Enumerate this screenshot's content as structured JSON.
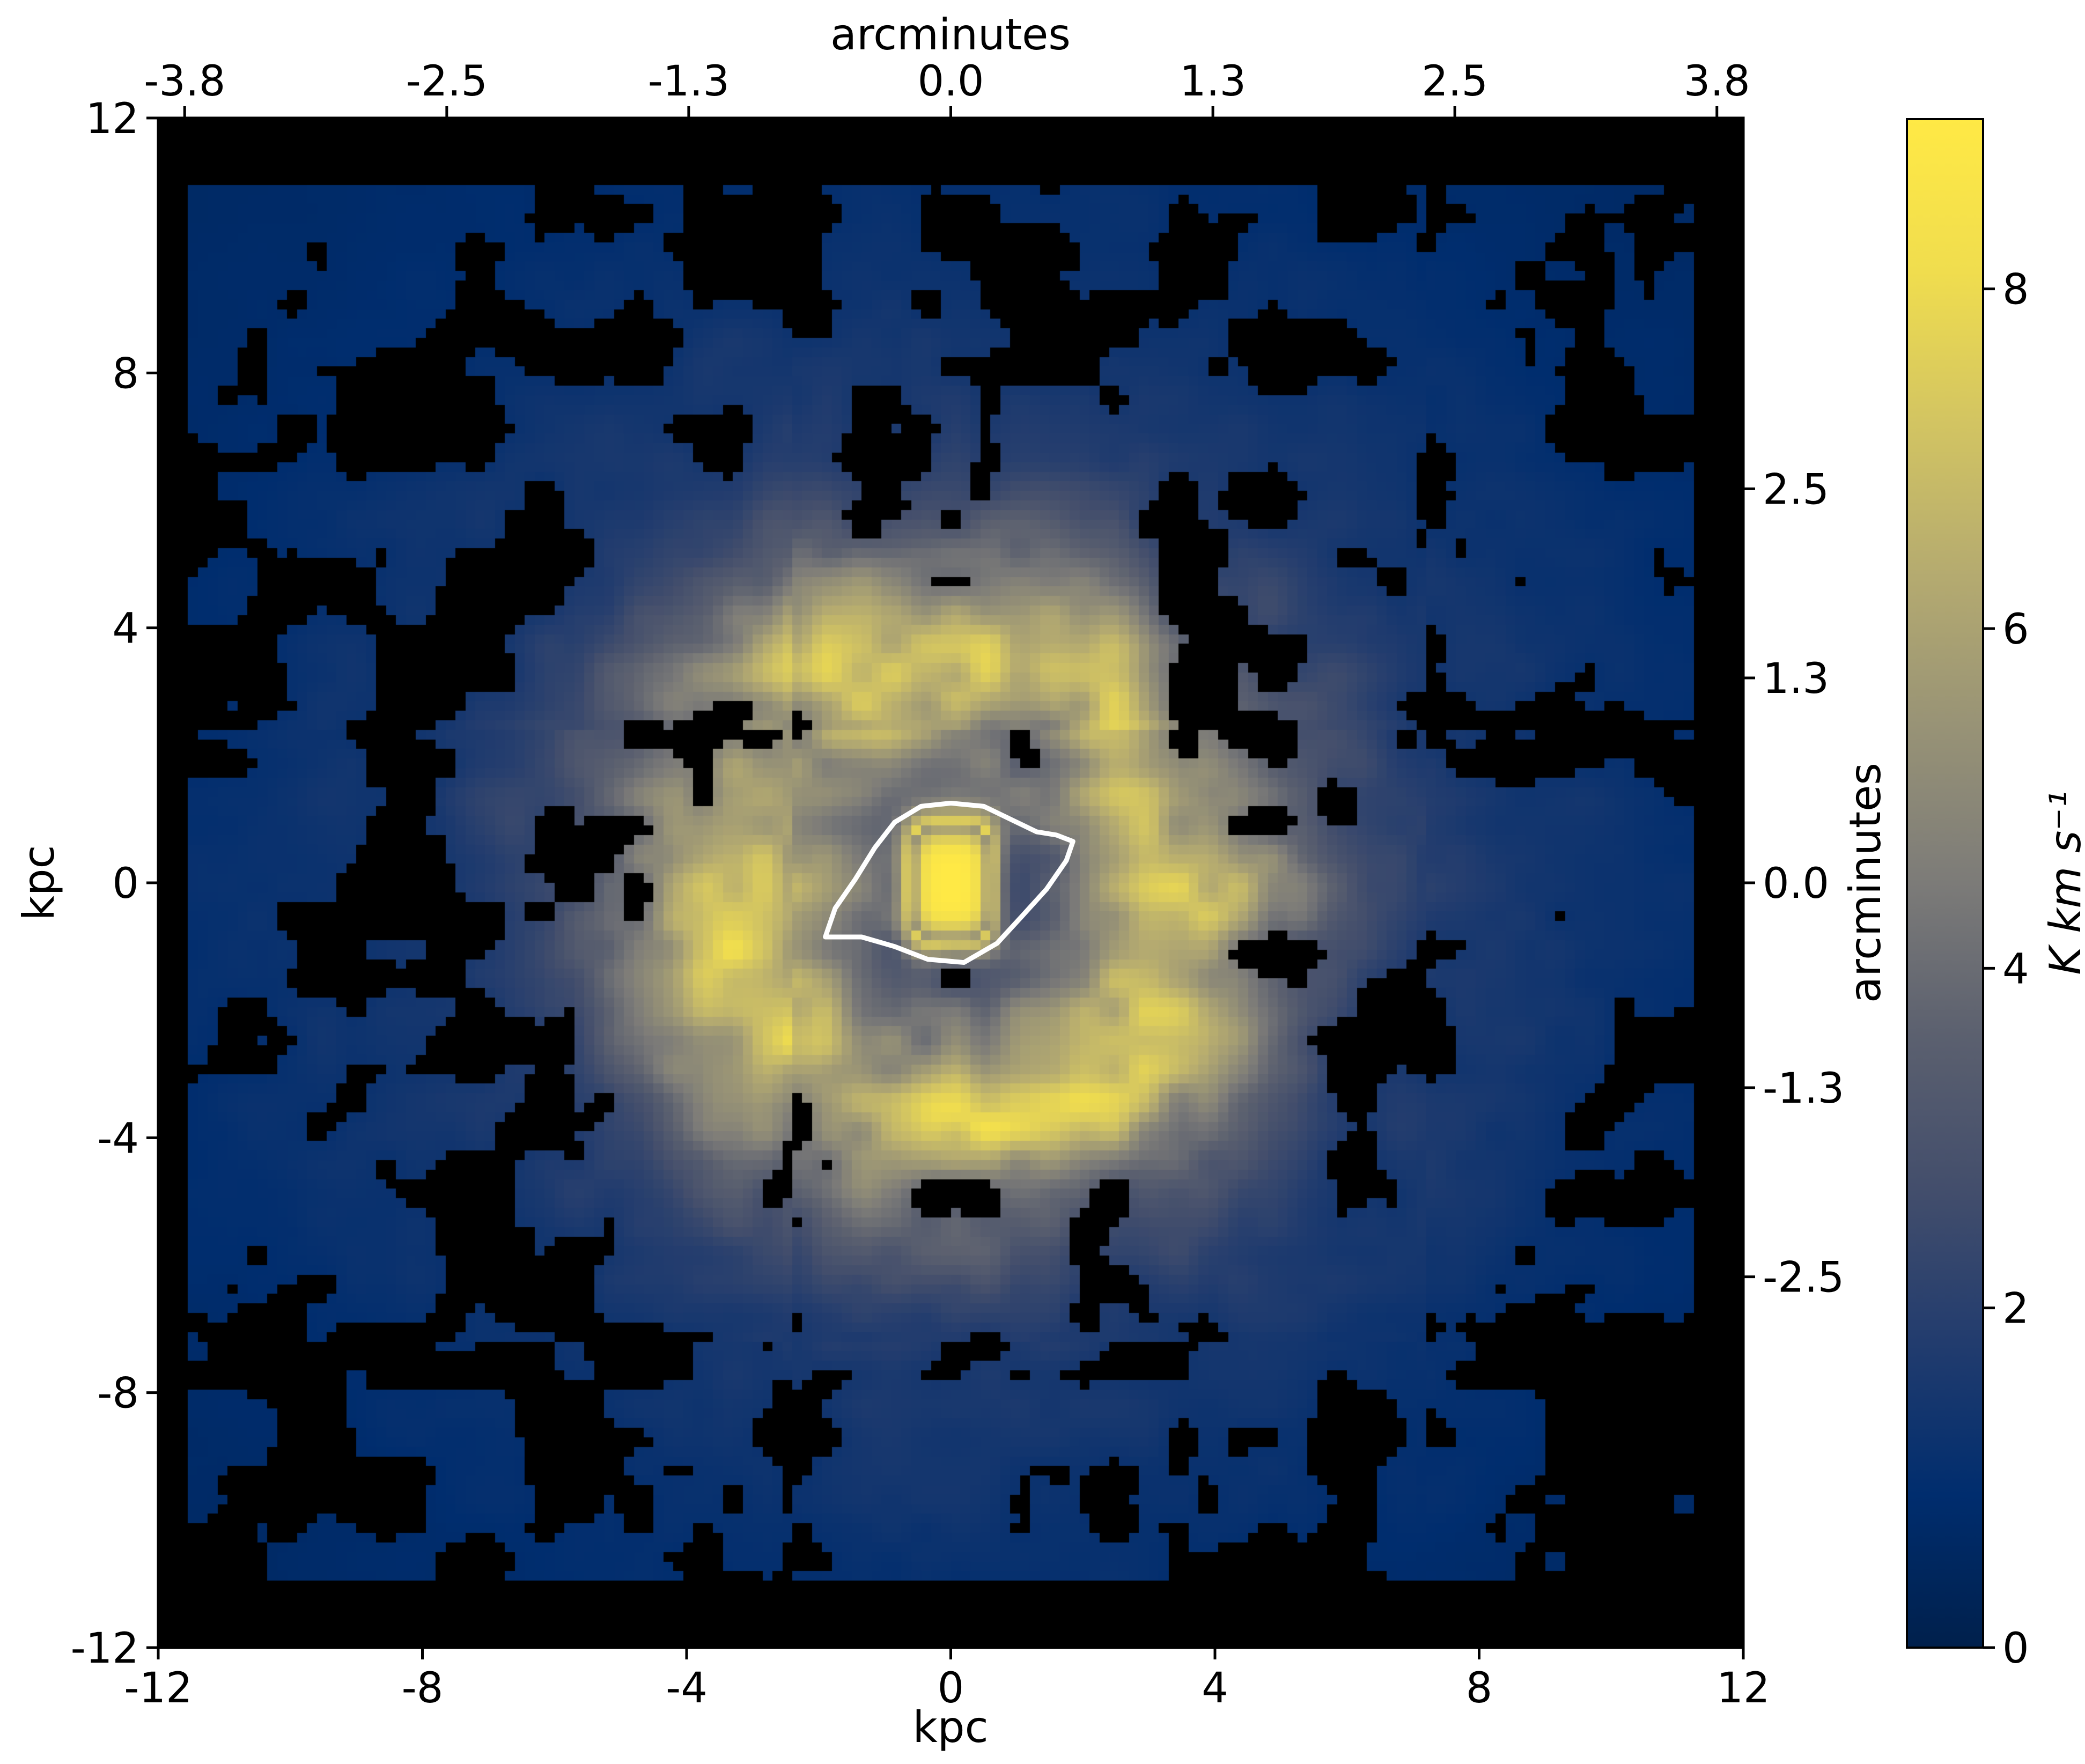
{
  "chart_data": {
    "type": "heatmap",
    "xlabel_bottom": "kpc",
    "xlabel_top": "arcminutes",
    "ylabel_left": "kpc",
    "ylabel_right": "arcminutes",
    "xlim": [
      -12,
      12
    ],
    "ylim": [
      -12,
      12
    ],
    "x_ticks": [
      "-12",
      "-8",
      "-4",
      "0",
      "4",
      "8",
      "12"
    ],
    "y_ticks": [
      "-12",
      "-8",
      "-4",
      "0",
      "4",
      "8",
      "12"
    ],
    "top_ticks": [
      "-3.8",
      "-2.5",
      "-1.3",
      "0.0",
      "1.3",
      "2.5",
      "3.8"
    ],
    "right_ticks": [
      "2.5",
      "1.3",
      "0.0",
      "-1.3",
      "-2.5"
    ],
    "colorbar": {
      "label": "K km s⁻¹",
      "range": [
        0,
        9
      ],
      "ticks": [
        "0",
        "2",
        "4",
        "6",
        "8"
      ],
      "colormap": "cividis",
      "color_low": "#00204c",
      "color_mid": "#7c7b78",
      "color_high": "#ffe945"
    },
    "map": {
      "background": "#000000",
      "valid_region_kpc": {
        "x": [
          -11.5,
          11.3
        ],
        "y": [
          -11.0,
          10.9
        ]
      },
      "blank_fraction": 0.33,
      "components": [
        {
          "name": "nucleus",
          "x_kpc": 0,
          "y_kpc": 0,
          "sx_kpc": 0.7,
          "sy_kpc": 1.05,
          "peak": 9
        },
        {
          "name": "ring",
          "radius_kpc": 3.6,
          "width_kpc": 1.4,
          "peak": 4.5
        },
        {
          "name": "diffuse-disk",
          "sigma_kpc": 6.5,
          "peak": 2.2
        }
      ],
      "contour_kpc": [
        [
          -1.9,
          -0.85
        ],
        [
          -1.75,
          -0.4
        ],
        [
          -1.45,
          0.05
        ],
        [
          -1.15,
          0.55
        ],
        [
          -0.85,
          0.95
        ],
        [
          -0.45,
          1.2
        ],
        [
          0.0,
          1.25
        ],
        [
          0.5,
          1.2
        ],
        [
          0.9,
          1.0
        ],
        [
          1.3,
          0.8
        ],
        [
          1.6,
          0.75
        ],
        [
          1.85,
          0.65
        ],
        [
          1.75,
          0.35
        ],
        [
          1.45,
          -0.1
        ],
        [
          1.1,
          -0.5
        ],
        [
          0.7,
          -0.95
        ],
        [
          0.2,
          -1.25
        ],
        [
          -0.35,
          -1.2
        ],
        [
          -0.85,
          -1.0
        ],
        [
          -1.35,
          -0.85
        ],
        [
          -1.9,
          -0.85
        ]
      ],
      "contour_color": "#ffffff"
    }
  }
}
